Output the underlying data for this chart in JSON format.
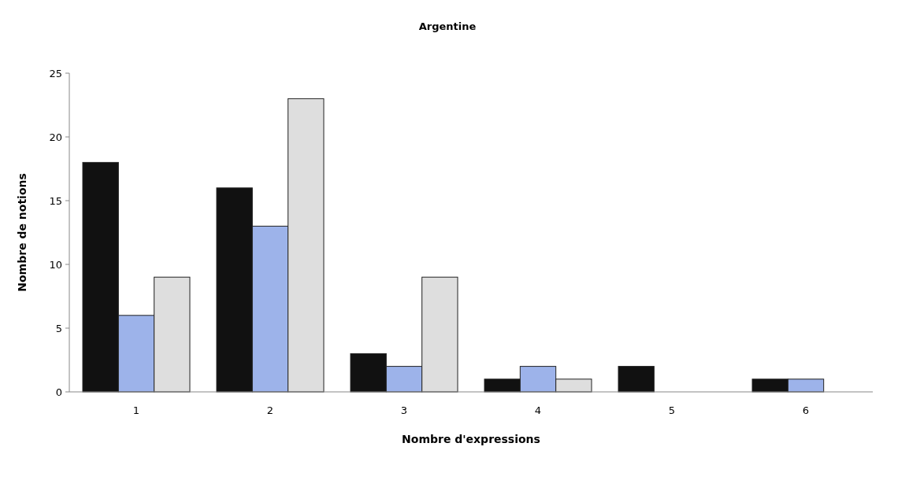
{
  "chart_data": {
    "type": "bar",
    "title": "Argentine",
    "xlabel": "Nombre d'expressions",
    "ylabel": "Nombre de notions",
    "categories": [
      "1",
      "2",
      "3",
      "4",
      "5",
      "6"
    ],
    "series": [
      {
        "color": "#111111",
        "values": [
          18,
          16,
          3,
          1,
          2,
          1
        ]
      },
      {
        "color": "#9db3ea",
        "values": [
          6,
          13,
          2,
          2,
          0,
          1
        ]
      },
      {
        "color": "#dedede",
        "values": [
          9,
          23,
          9,
          1,
          0,
          0
        ]
      }
    ],
    "ylim": [
      0,
      25
    ],
    "yticks": [
      0,
      5,
      10,
      15,
      20,
      25
    ],
    "grid": false
  }
}
